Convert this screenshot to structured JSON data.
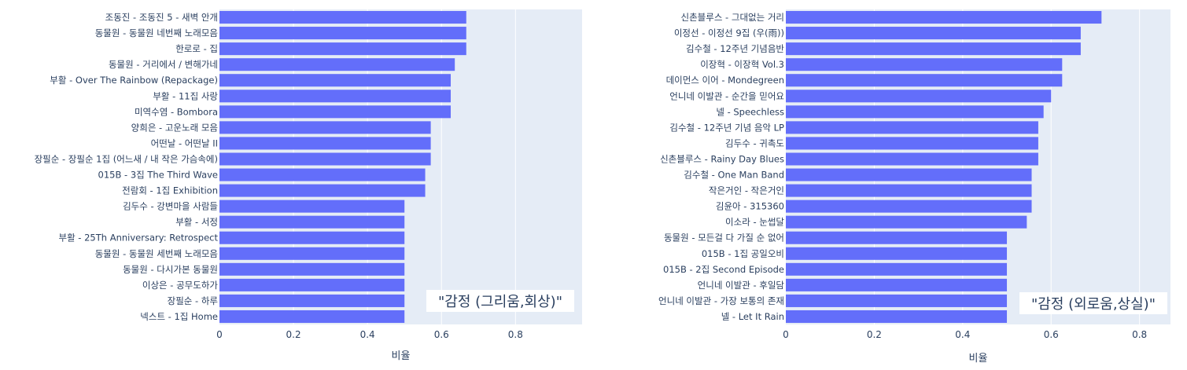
{
  "chart_data": [
    {
      "type": "bar",
      "orientation": "horizontal",
      "categories": [
        "조동진 - 조동진 5 - 새벽 안개",
        "동물원 - 동물원 네번째 노래모음",
        "한로로 - 집",
        "동물원 - 거리에서 / 변해가네",
        "부활 - Over The Rainbow (Repackage)",
        "부활 - 11집 사랑",
        "미역수염 - Bombora",
        "양희은 - 고운노래 모음",
        "어떤날 - 어떤날 II",
        "장필순 - 장필순 1집 (어느새 / 내 작은 가슴속에)",
        "015B - 3집 The Third Wave",
        "전람회 - 1집 Exhibition",
        "김두수 - 강변마을 사람들",
        "부활 - 서정",
        "부활 - 25Th Anniversary: Retrospect",
        "동물원 - 동물원 세번째 노래모음",
        "동물원 - 다시가본 동물원",
        "이상은 - 공무도하가",
        "장필순 - 하루",
        "넥스트 - 1집 Home"
      ],
      "values": [
        0.667,
        0.667,
        0.667,
        0.636,
        0.625,
        0.625,
        0.625,
        0.571,
        0.571,
        0.571,
        0.556,
        0.556,
        0.5,
        0.5,
        0.5,
        0.5,
        0.5,
        0.5,
        0.5,
        0.5
      ],
      "xlabel": "비율",
      "ylabel": "",
      "xlim": [
        0,
        0.98
      ],
      "xticks": [
        "0",
        "0.2",
        "0.4",
        "0.6",
        "0.8"
      ],
      "annotation": "\"감정 (그리움,회상)\"",
      "grid": true,
      "bar_color": "#636efa",
      "plot_bg": "#e5ecf6"
    },
    {
      "type": "bar",
      "orientation": "horizontal",
      "categories": [
        "신촌블루스 - 그대없는 거리",
        "이정선 - 이정선 9집 (우(雨))",
        "김수철 - 12주년 기념음반",
        "이장혁 - 이장혁 Vol.3",
        "데이먼스 이어 - Mondegreen",
        "언니네 이발관 - 순간을 믿어요",
        "넬 - Speechless",
        "김수철 - 12주년 기념 음악 LP",
        "김두수 - 귀촉도",
        "신촌블루스 - Rainy Day Blues",
        "김수철 - One Man Band",
        "작은거인 - 작은거인",
        "김윤아 - 315360",
        "이소라 - 눈썹달",
        "동물원 - 모든걸 다 가질 순 없어",
        "015B - 1집 공일오비",
        "015B - 2집 Second Episode",
        "언니네 이발관 - 후일담",
        "언니네 이발관 - 가장 보통의 존재",
        "넬 - Let It Rain"
      ],
      "values": [
        0.714,
        0.667,
        0.667,
        0.625,
        0.625,
        0.6,
        0.583,
        0.571,
        0.571,
        0.571,
        0.556,
        0.556,
        0.556,
        0.545,
        0.5,
        0.5,
        0.5,
        0.5,
        0.5,
        0.5
      ],
      "xlabel": "비율",
      "ylabel": "",
      "xlim": [
        0,
        0.87
      ],
      "xticks": [
        "0",
        "0.2",
        "0.4",
        "0.6",
        "0.8"
      ],
      "annotation": "\"감정 (외로움,상실)\"",
      "grid": true,
      "bar_color": "#636efa",
      "plot_bg": "#e5ecf6"
    }
  ]
}
